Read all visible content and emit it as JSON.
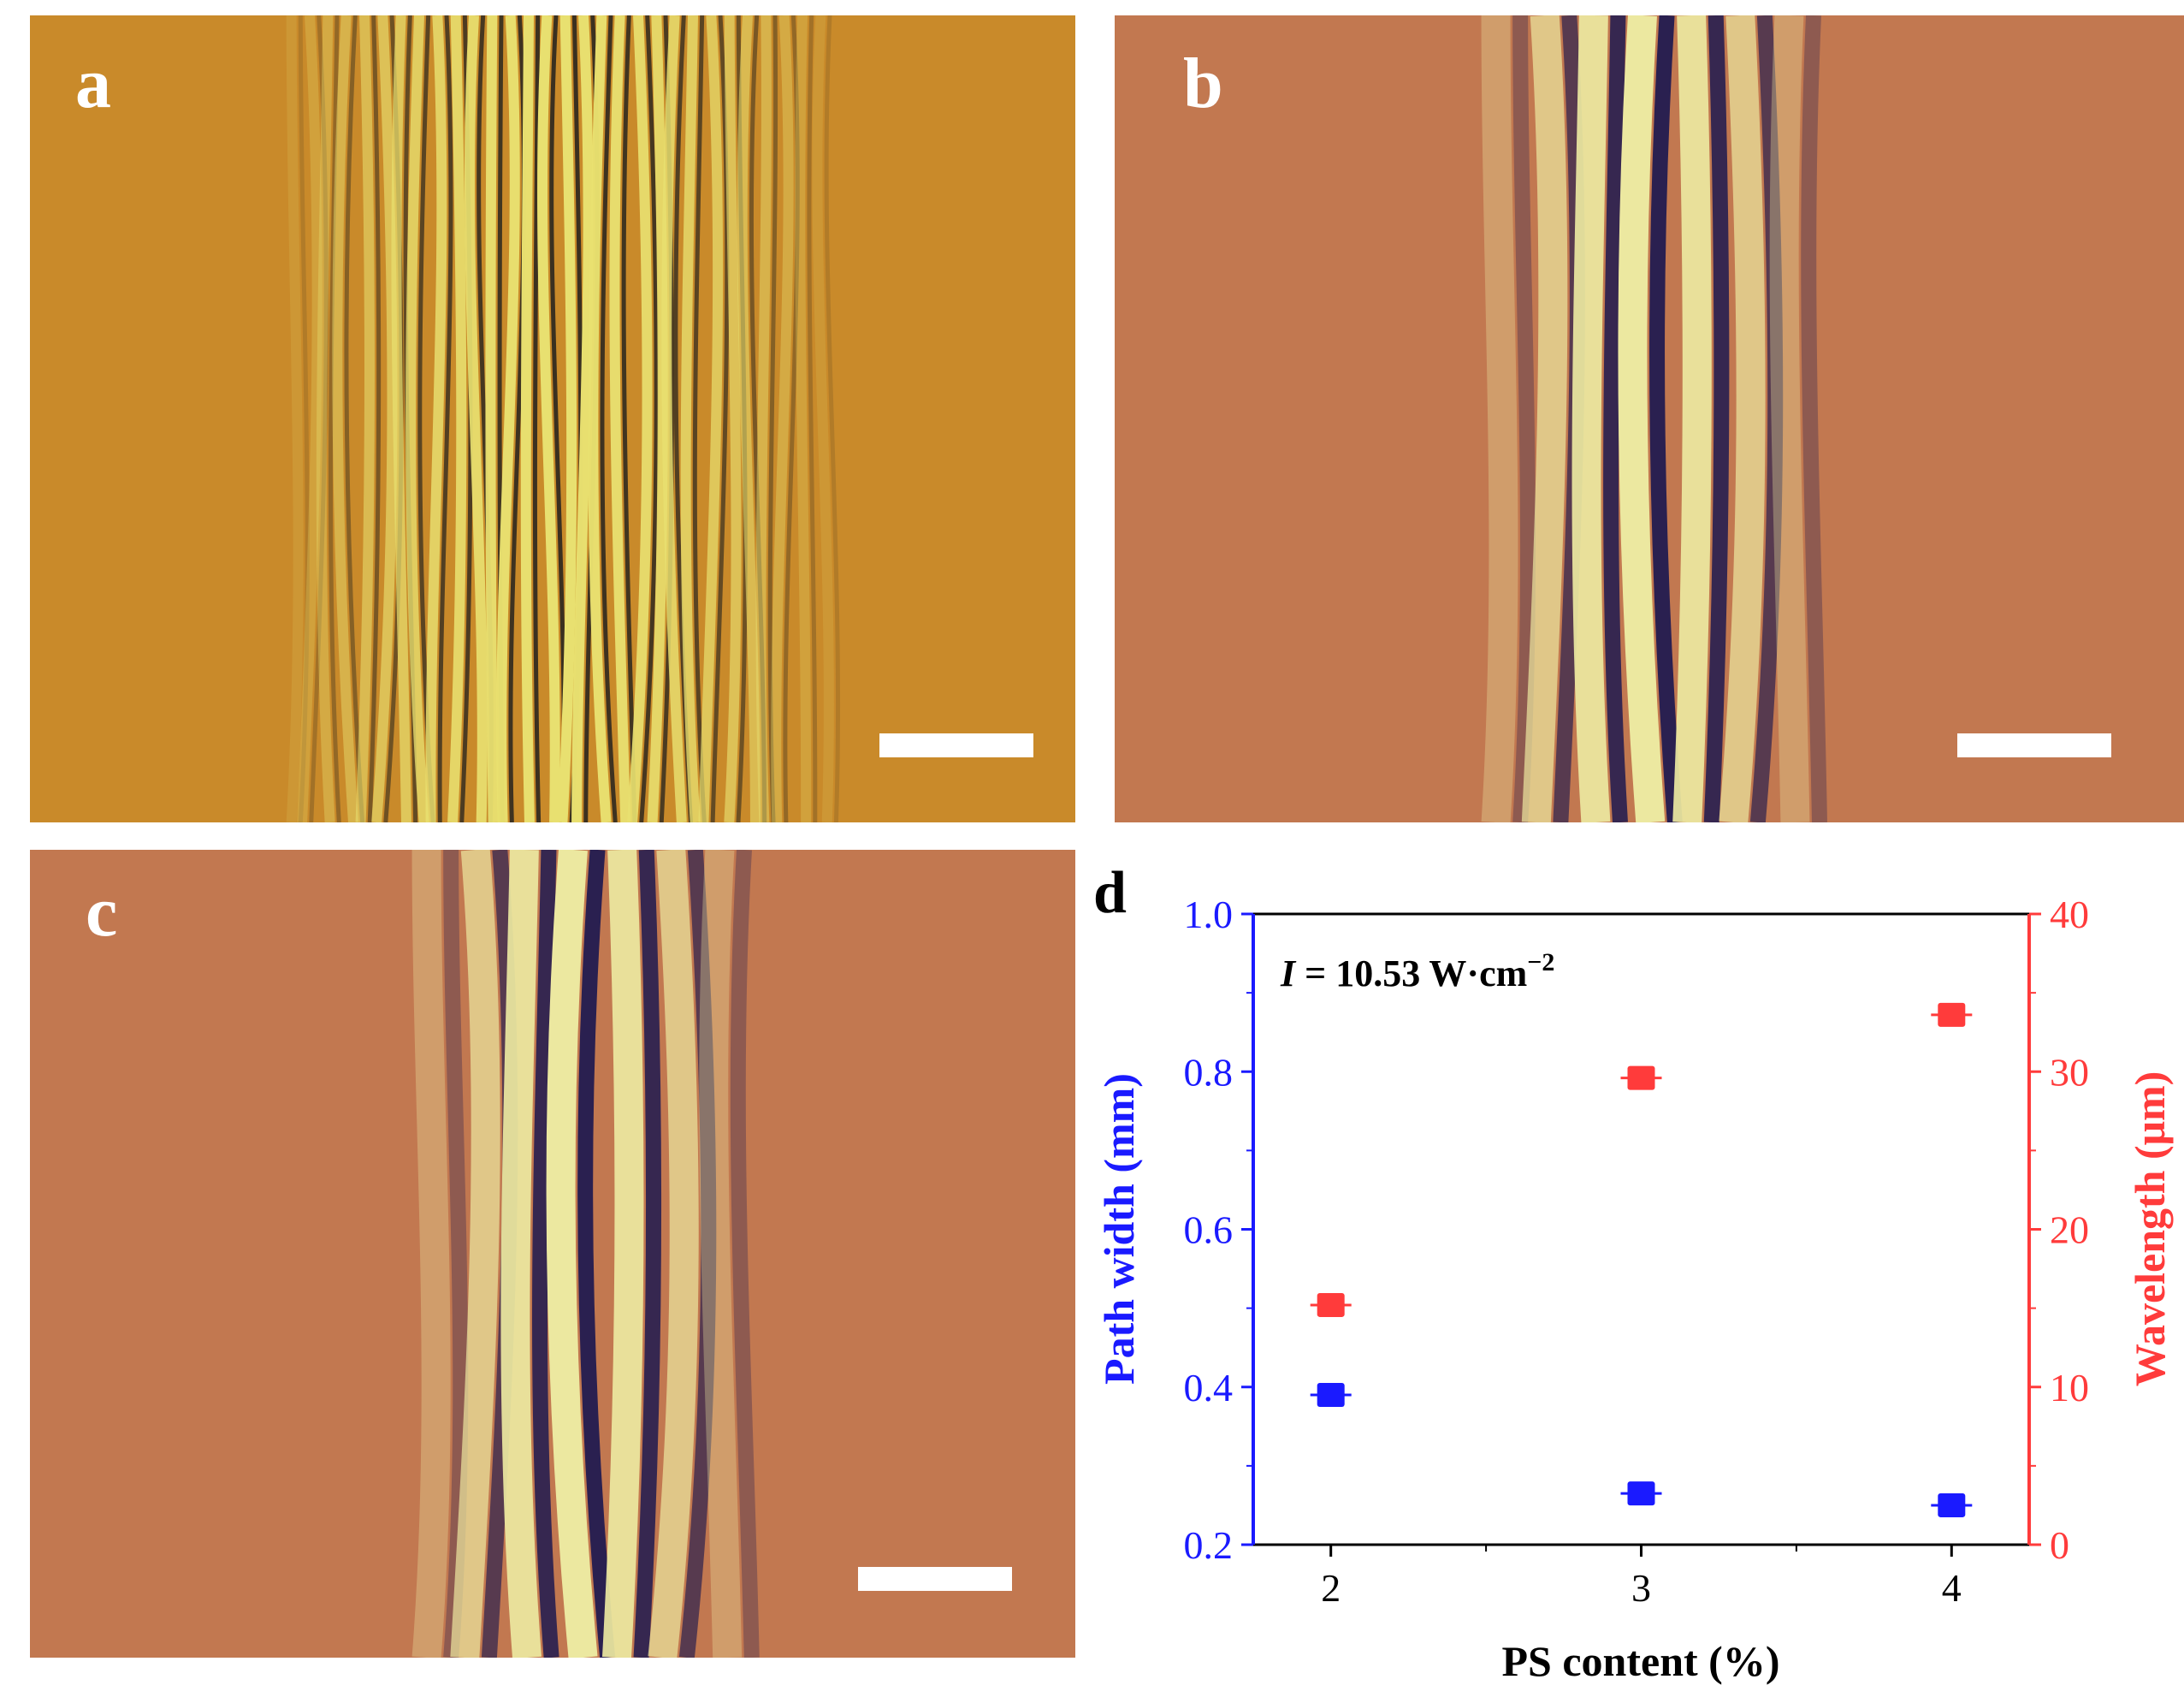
{
  "panels": {
    "a": {
      "label": "a",
      "bg": "#c98a2a",
      "stripe_light": "#e8e070",
      "stripe_dark": "#3a3020"
    },
    "b": {
      "label": "b",
      "bg": "#c27850",
      "stripe_light": "#ece8a0",
      "stripe_dark": "#2a2050"
    },
    "c": {
      "label": "c",
      "bg": "#c27850",
      "stripe_light": "#ece8a0",
      "stripe_dark": "#2a2050"
    }
  },
  "chart_data": {
    "type": "scatter",
    "panel_label": "d",
    "annotation": "I = 10.53 W·cm⁻²",
    "annotation_var": "I",
    "annotation_rest": " = 10.53 W·cm",
    "annotation_sup": "−2",
    "xlabel": "PS content (%)",
    "ylabel_left": "Path width (mm)",
    "ylabel_right": "Wavelength (μm)",
    "x_ticks": [
      "2",
      "3",
      "4"
    ],
    "x_range": [
      1.75,
      4.25
    ],
    "y_left_range": [
      0.2,
      1.0
    ],
    "y_left_ticks": [
      "0.2",
      "0.4",
      "0.6",
      "0.8",
      "1.0"
    ],
    "y_right_range": [
      0,
      40
    ],
    "y_right_ticks": [
      "0",
      "10",
      "20",
      "30",
      "40"
    ],
    "grid": false,
    "series": [
      {
        "axis": "left",
        "color": "#1a1aff",
        "x": [
          2,
          3,
          4
        ],
        "y": [
          0.39,
          0.265,
          0.25
        ]
      },
      {
        "axis": "right",
        "color": "#ff3b3b",
        "x": [
          2,
          3,
          4
        ],
        "y": [
          15.2,
          29.6,
          33.6
        ]
      }
    ],
    "left_axis_color": "#1a1aff",
    "right_axis_color": "#ff3b3b"
  }
}
